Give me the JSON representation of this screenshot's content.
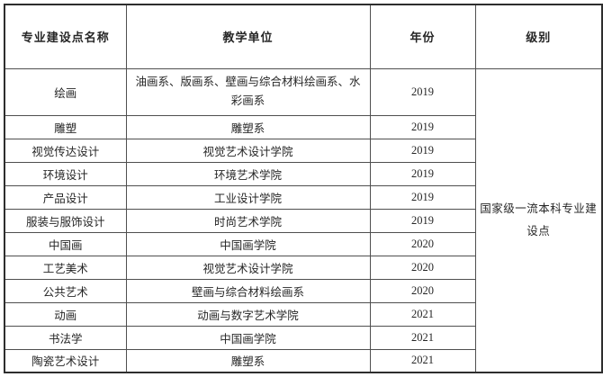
{
  "table": {
    "headers": {
      "name": "专业建设点名称",
      "unit": "教学单位",
      "year": "年份",
      "level": "级别"
    },
    "rows": [
      {
        "name": "绘画",
        "unit": "油画系、版画系、壁画与综合材料绘画系、水彩画系",
        "year": "2019"
      },
      {
        "name": "雕塑",
        "unit": "雕塑系",
        "year": "2019"
      },
      {
        "name": "视觉传达设计",
        "unit": "视觉艺术设计学院",
        "year": "2019"
      },
      {
        "name": "环境设计",
        "unit": "环境艺术学院",
        "year": "2019"
      },
      {
        "name": "产品设计",
        "unit": "工业设计学院",
        "year": "2019"
      },
      {
        "name": "服装与服饰设计",
        "unit": "时尚艺术学院",
        "year": "2019"
      },
      {
        "name": "中国画",
        "unit": "中国画学院",
        "year": "2020"
      },
      {
        "name": "工艺美术",
        "unit": "视觉艺术设计学院",
        "year": "2020"
      },
      {
        "name": "公共艺术",
        "unit": "壁画与综合材料绘画系",
        "year": "2020"
      },
      {
        "name": "动画",
        "unit": "动画与数字艺术学院",
        "year": "2021"
      },
      {
        "name": "书法学",
        "unit": "中国画学院",
        "year": "2021"
      },
      {
        "name": "陶瓷艺术设计",
        "unit": "雕塑系",
        "year": "2021"
      }
    ],
    "level_merged": "国家级一流本科专业建设点"
  },
  "colors": {
    "background": "#ffffff",
    "border_outer": "#2e2e2e",
    "border_inner": "#4f4f4f",
    "text": "#262626"
  }
}
